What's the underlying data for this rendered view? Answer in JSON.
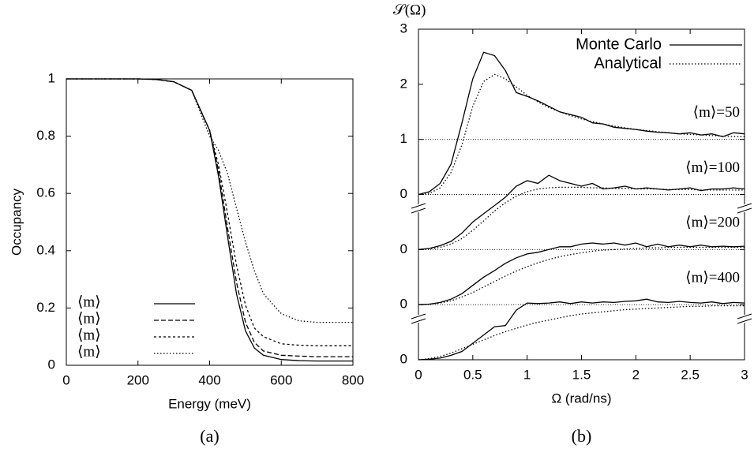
{
  "chart_data": [
    {
      "type": "line",
      "ylabel": "Occupancy",
      "xlabel": "Energy (meV)",
      "caption": "(a)",
      "xlim": [
        0,
        800
      ],
      "xticks": [
        0,
        200,
        400,
        600,
        800
      ],
      "ylim": [
        0,
        1
      ],
      "yticks": [
        0,
        0.2,
        0.4,
        0.6,
        0.8,
        1
      ],
      "x": [
        0,
        100,
        200,
        250,
        300,
        350,
        400,
        425,
        450,
        475,
        500,
        525,
        550,
        600,
        650,
        700,
        800
      ],
      "series": [
        {
          "name": "⟨m⟩",
          "color": "#000",
          "dash": "solid",
          "values": [
            1,
            1,
            1,
            0.998,
            0.99,
            0.96,
            0.82,
            0.66,
            0.45,
            0.25,
            0.12,
            0.06,
            0.035,
            0.02,
            0.016,
            0.015,
            0.015
          ]
        },
        {
          "name": "⟨m⟩",
          "color": "#000",
          "dash": "dashed",
          "values": [
            1,
            1,
            1,
            0.998,
            0.99,
            0.96,
            0.82,
            0.68,
            0.48,
            0.29,
            0.15,
            0.08,
            0.05,
            0.035,
            0.032,
            0.03,
            0.03
          ]
        },
        {
          "name": "⟨m⟩",
          "color": "#000",
          "dash": "short-dashed",
          "values": [
            1,
            1,
            1,
            0.998,
            0.99,
            0.96,
            0.82,
            0.7,
            0.53,
            0.35,
            0.21,
            0.13,
            0.1,
            0.075,
            0.07,
            0.068,
            0.068
          ]
        },
        {
          "name": "⟨m⟩",
          "color": "#000",
          "dash": "dotted",
          "values": [
            1,
            1,
            1,
            0.998,
            0.99,
            0.96,
            0.8,
            0.75,
            0.67,
            0.55,
            0.43,
            0.33,
            0.25,
            0.18,
            0.155,
            0.15,
            0.15
          ]
        }
      ]
    },
    {
      "type": "line",
      "ylabel": "𝒮(Ω)",
      "xlabel": "Ω (rad/ns)",
      "caption": "(b)",
      "xlim": [
        0,
        3
      ],
      "xticks": [
        0,
        0.5,
        1,
        1.5,
        2,
        2.5,
        3
      ],
      "ylim": [
        0,
        6
      ],
      "yticks": [
        {
          "value": 0,
          "label": "0"
        },
        {
          "value": 1,
          "label": "0"
        },
        {
          "value": 2,
          "label": "0"
        },
        {
          "value": 3,
          "label": "0"
        },
        {
          "value": 4,
          "label": "1"
        },
        {
          "value": 5,
          "label": "2"
        },
        {
          "value": 6,
          "label": "3"
        }
      ],
      "reference_lines": [
        1,
        2,
        3,
        4
      ],
      "x": [
        0,
        0.1,
        0.2,
        0.3,
        0.4,
        0.5,
        0.6,
        0.7,
        0.8,
        0.9,
        1,
        1.1,
        1.2,
        1.3,
        1.4,
        1.5,
        1.6,
        1.7,
        1.8,
        1.9,
        2,
        2.1,
        2.2,
        2.3,
        2.4,
        2.5,
        2.6,
        2.7,
        2.8,
        2.9,
        3
      ],
      "series": [
        {
          "name": "Monte Carlo",
          "color": "#000",
          "dash": "solid",
          "curves": [
            {
              "label": "⟨m⟩=50",
              "values": [
                3,
                3.05,
                3.2,
                3.55,
                4.3,
                5.1,
                5.58,
                5.52,
                5.25,
                4.85,
                4.78,
                4.7,
                4.6,
                4.5,
                4.45,
                4.4,
                4.3,
                4.28,
                4.22,
                4.2,
                4.18,
                4.15,
                4.13,
                4.12,
                4.1,
                4.12,
                4.08,
                4.1,
                4.05,
                4.12,
                4.1
              ]
            },
            {
              "label": "⟨m⟩=100",
              "values": [
                2,
                2.02,
                2.07,
                2.15,
                2.3,
                2.5,
                2.65,
                2.8,
                2.95,
                3.15,
                3.25,
                3.2,
                3.35,
                3.25,
                3.2,
                3.15,
                3.2,
                3.1,
                3.12,
                3.15,
                3.1,
                3.12,
                3.1,
                3.08,
                3.1,
                3.12,
                3.07,
                3.1,
                3.1,
                3.12,
                3.1
              ]
            },
            {
              "label": "⟨m⟩=200",
              "values": [
                1,
                1.01,
                1.04,
                1.1,
                1.2,
                1.35,
                1.5,
                1.62,
                1.75,
                1.85,
                1.92,
                1.95,
                2,
                2.05,
                2.05,
                2.1,
                2.12,
                2.1,
                2.12,
                2.08,
                2.12,
                2.05,
                2.1,
                2.05,
                2.08,
                2.05,
                2.08,
                2.05,
                2.06,
                2.05,
                2.06
              ]
            },
            {
              "label": "⟨m⟩=400",
              "values": [
                0,
                0.01,
                0.03,
                0.08,
                0.15,
                0.3,
                0.45,
                0.6,
                0.62,
                0.9,
                1.03,
                1.02,
                1.03,
                1.05,
                1.02,
                1.05,
                1.03,
                1.05,
                1.04,
                1.06,
                1.07,
                1.1,
                1.05,
                1.04,
                1.06,
                1.04,
                1.03,
                1.05,
                1.02,
                1.04,
                1.03
              ]
            }
          ]
        },
        {
          "name": "Analytical",
          "color": "#000",
          "dash": "dotted",
          "curves": [
            {
              "values": [
                3,
                3.02,
                3.12,
                3.4,
                3.9,
                4.6,
                5.05,
                5.18,
                5.1,
                4.95,
                4.8,
                4.68,
                4.58,
                4.5,
                4.43,
                4.37,
                4.32,
                4.28,
                4.24,
                4.21,
                4.18,
                4.16,
                4.14,
                4.12,
                4.1,
                4.09,
                4.08,
                4.07,
                4.06,
                4.05,
                4.05
              ]
            },
            {
              "values": [
                2,
                2.01,
                2.04,
                2.1,
                2.2,
                2.35,
                2.52,
                2.7,
                2.85,
                2.97,
                3.05,
                3.1,
                3.12,
                3.13,
                3.13,
                3.13,
                3.12,
                3.12,
                3.11,
                3.11,
                3.1,
                3.1,
                3.1,
                3.09,
                3.09,
                3.09,
                3.08,
                3.08,
                3.08,
                3.08,
                3.08
              ]
            },
            {
              "values": [
                1,
                1.01,
                1.03,
                1.07,
                1.14,
                1.22,
                1.32,
                1.42,
                1.52,
                1.61,
                1.69,
                1.76,
                1.82,
                1.87,
                1.91,
                1.94,
                1.97,
                1.99,
                2,
                2.01,
                2.02,
                2.03,
                2.03,
                2.04,
                2.04,
                2.04,
                2.04,
                2.04,
                2.04,
                2.04,
                2.04
              ]
            },
            {
              "values": [
                0,
                0.02,
                0.06,
                0.12,
                0.2,
                0.28,
                0.36,
                0.44,
                0.51,
                0.57,
                0.63,
                0.68,
                0.72,
                0.76,
                0.8,
                0.83,
                0.85,
                0.87,
                0.89,
                0.91,
                0.92,
                0.93,
                0.94,
                0.95,
                0.96,
                0.97,
                0.97,
                0.98,
                0.98,
                0.98,
                0.98
              ]
            }
          ]
        }
      ]
    }
  ]
}
